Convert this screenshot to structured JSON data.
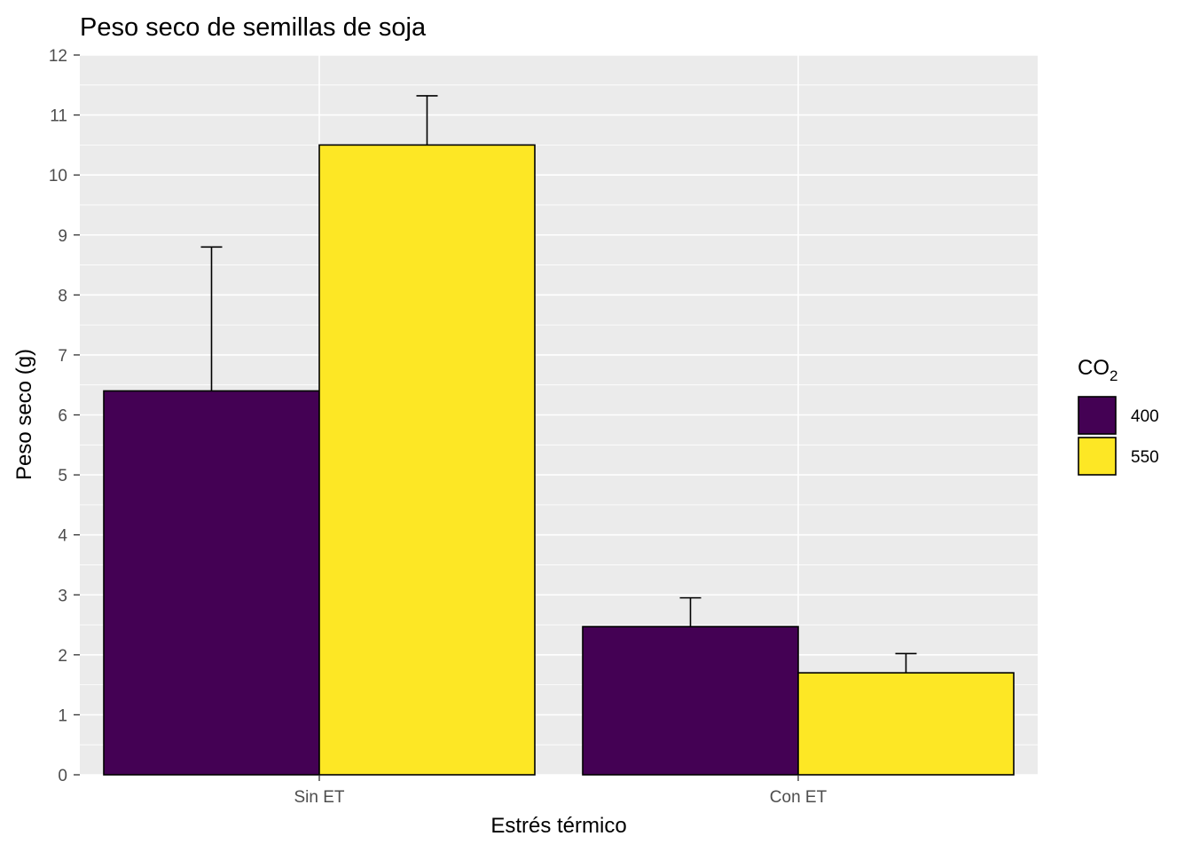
{
  "chart_data": {
    "type": "bar",
    "title": "Peso seco de semillas de soja",
    "xlabel": "Estrés térmico",
    "ylabel": "Peso seco (g)",
    "categories": [
      "Sin ET",
      "Con ET"
    ],
    "ylim": [
      0,
      12
    ],
    "yticks": [
      "0",
      "1",
      "2",
      "3",
      "4",
      "5",
      "6",
      "7",
      "8",
      "9",
      "10",
      "11",
      "12"
    ],
    "grid": true,
    "legend_position": "right",
    "legend": {
      "title_main": "CO",
      "title_subscript": "2"
    },
    "series": [
      {
        "name": "400",
        "color": "#440154",
        "values": [
          6.4,
          2.47
        ],
        "error_upper": [
          8.8,
          2.95
        ]
      },
      {
        "name": "550",
        "color": "#FDE725",
        "values": [
          10.5,
          1.7
        ],
        "error_upper": [
          11.32,
          2.02
        ]
      }
    ]
  }
}
